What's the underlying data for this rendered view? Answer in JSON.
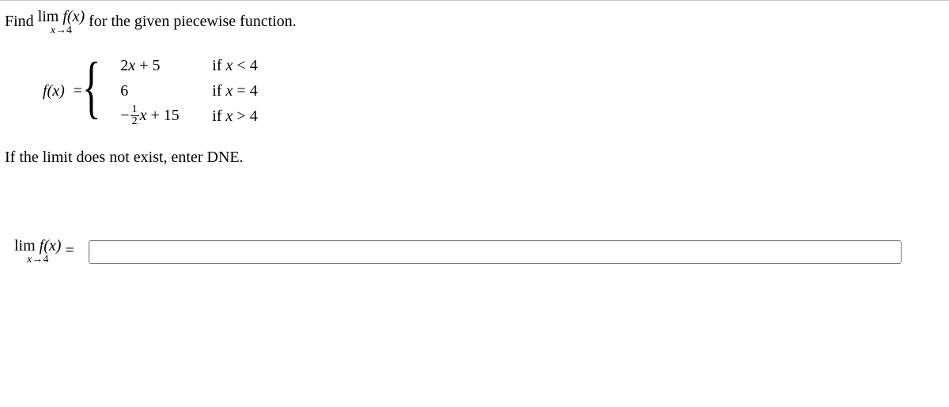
{
  "prompt": {
    "prefix": "Find ",
    "lim_word": "lim",
    "lim_sub_var": "x",
    "lim_sub_arrow": "→",
    "lim_sub_val": "4",
    "fx": "f(x)",
    "suffix": " for the given piecewise function."
  },
  "piecewise": {
    "fx_label": "f(x)",
    "equals": " = ",
    "cases": [
      {
        "expr_html": "2x + 5",
        "cond_prefix": "if ",
        "cond_var": "x",
        "cond_op": " < ",
        "cond_val": "4"
      },
      {
        "expr_html": "6",
        "cond_prefix": "if ",
        "cond_var": "x",
        "cond_op": " = ",
        "cond_val": "4"
      },
      {
        "expr_prefix": "−",
        "frac_num": "1",
        "frac_den": "2",
        "expr_mid": "x",
        "expr_suffix": " + 15",
        "cond_prefix": "if ",
        "cond_var": "x",
        "cond_op": " > ",
        "cond_val": "4"
      }
    ]
  },
  "instruction": "If the limit does not exist, enter DNE.",
  "answer": {
    "lim_word": "lim",
    "lim_sub_var": "x",
    "lim_sub_arrow": "→",
    "lim_sub_val": "4",
    "fx": "f(x)",
    "equals": " = ",
    "value": ""
  }
}
